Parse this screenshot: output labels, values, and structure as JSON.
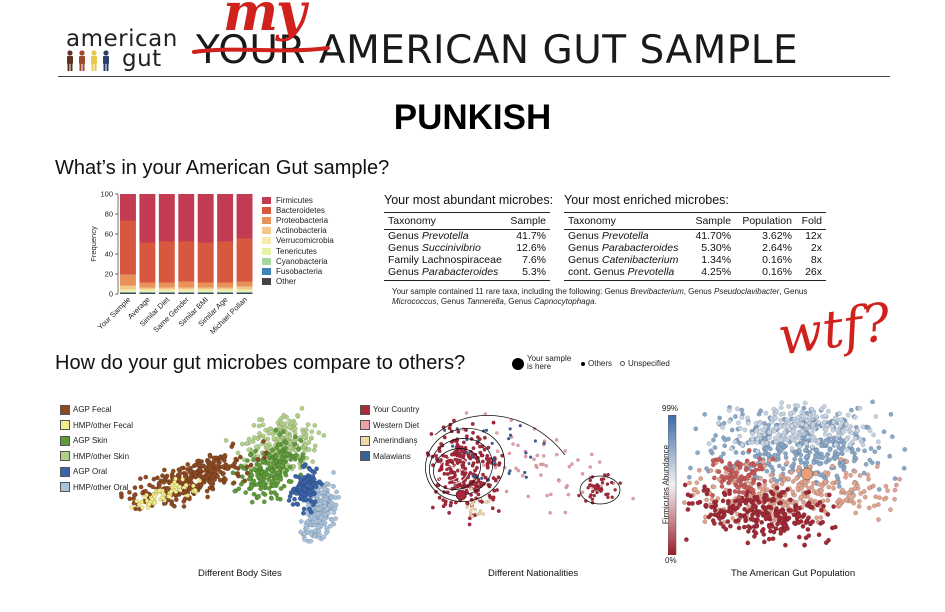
{
  "header": {
    "logo_top": "american",
    "logo_bottom": "gut",
    "title_struck": "YOUR",
    "title_rest": " AMERICAN GUT SAMPLE",
    "annotation": "my"
  },
  "page_title": "PUNKISH",
  "section1_title": "What’s in your American Gut sample?",
  "section2_title": "How do your gut microbes compare to others?",
  "handwritten_note": "wtf?",
  "colors": {
    "Firmicutes": "#c23b52",
    "Bacteroidetes": "#d8583f",
    "Proteobacteria": "#e8925a",
    "Actinobacteria": "#f2c98a",
    "Verrucomicrobia": "#f7ebaf",
    "Tenericutes": "#e6f1a8",
    "Cyanobacteria": "#a8d69f",
    "Fusobacteria": "#3f85b8",
    "Other": "#444444",
    "annotation_red": "#d0211d"
  },
  "chart_data": {
    "type": "bar",
    "stacked": true,
    "ylabel": "Frequency",
    "ylim": [
      0,
      100
    ],
    "yticks": [
      "0",
      "20",
      "40",
      "60",
      "80",
      "100"
    ],
    "categories": [
      "Your Sample",
      "Average",
      "Similar Diet",
      "Same Gender",
      "Similar BMI",
      "Similar Age",
      "Michael Pollan"
    ],
    "series": [
      {
        "name": "Other",
        "values": [
          1,
          1,
          1,
          1,
          1,
          1,
          1
        ]
      },
      {
        "name": "Fusobacteria",
        "values": [
          0.5,
          0.5,
          0.5,
          0.5,
          0.5,
          0.5,
          0.5
        ]
      },
      {
        "name": "Cyanobacteria",
        "values": [
          0.5,
          0.5,
          0.5,
          0.5,
          0.5,
          0.5,
          0.5
        ]
      },
      {
        "name": "Tenericutes",
        "values": [
          0.5,
          0.5,
          0.5,
          0.5,
          0.5,
          0.5,
          0.5
        ]
      },
      {
        "name": "Verrucomicrobia",
        "values": [
          2,
          2,
          2,
          2,
          2,
          2,
          2
        ]
      },
      {
        "name": "Actinobacteria",
        "values": [
          4,
          2,
          2,
          2,
          2,
          2,
          3
        ]
      },
      {
        "name": "Proteobacteria",
        "values": [
          11,
          5,
          5,
          6,
          5,
          5,
          5
        ]
      },
      {
        "name": "Bacteroidetes",
        "values": [
          54,
          40,
          41,
          40,
          40,
          41,
          43
        ]
      },
      {
        "name": "Firmicutes",
        "values": [
          26.5,
          48.5,
          47.5,
          47.5,
          48.5,
          47.5,
          44.5
        ]
      }
    ],
    "legend": [
      "Firmicutes",
      "Bacteroidetes",
      "Proteobacteria",
      "Actinobacteria",
      "Verrucomicrobia",
      "Tenericutes",
      "Cyanobacteria",
      "Fusobacteria",
      "Other"
    ]
  },
  "abundant": {
    "title": "Your most abundant microbes:",
    "headers": [
      "Taxonomy",
      "Sample"
    ],
    "rows": [
      {
        "rank": "Genus ",
        "name": "Prevotella",
        "sample": "41.7%"
      },
      {
        "rank": "Genus ",
        "name": "Succinivibrio",
        "sample": "12.6%"
      },
      {
        "rank": "Family Lachnospiraceae",
        "name": "",
        "sample": "7.6%"
      },
      {
        "rank": "Genus ",
        "name": "Parabacteroides",
        "sample": "5.3%"
      }
    ]
  },
  "enriched": {
    "title": "Your most enriched microbes:",
    "headers": [
      "Taxonomy",
      "Sample",
      "Population",
      "Fold"
    ],
    "rows": [
      {
        "rank": "Genus ",
        "name": "Prevotella",
        "sample": "41.70%",
        "population": "3.62%",
        "fold": "12x"
      },
      {
        "rank": "Genus ",
        "name": "Parabacteroides",
        "sample": "5.30%",
        "population": "2.64%",
        "fold": "2x"
      },
      {
        "rank": "Genus ",
        "name": "Catenibacterium",
        "sample": "1.34%",
        "population": "0.16%",
        "fold": "8x"
      },
      {
        "rank": "cont. Genus ",
        "name": "Prevotella",
        "sample": "4.25%",
        "population": "0.16%",
        "fold": "26x"
      }
    ]
  },
  "rare_note": {
    "lead": "Your sample contained 11 rare taxa, including the following: Genus ",
    "t1": "Brevibacterium",
    "s1": ", Genus ",
    "t2": "Pseudoclavibacter",
    "s2": ", Genus ",
    "t3": "Micrococcus",
    "s3": ", Genus ",
    "t4": "Tannerella",
    "s4": ", Genus ",
    "t5": "Capnocytophaga",
    "end": "."
  },
  "pcoa_legend": {
    "your_sample": "Your sample is here",
    "others": "Others",
    "unspecified": "Unspecified"
  },
  "body_sites": {
    "caption": "Different Body Sites",
    "legend": [
      {
        "label": "AGP Fecal",
        "color": "#8b4a22"
      },
      {
        "label": "HMP/other Fecal",
        "color": "#f3ee8a"
      },
      {
        "label": "AGP Skin",
        "color": "#5f9b3a"
      },
      {
        "label": "HMP/other Skin",
        "color": "#b3d08a"
      },
      {
        "label": "AGP Oral",
        "color": "#3a63a8"
      },
      {
        "label": "HMP/other Oral",
        "color": "#a9c3dc"
      }
    ]
  },
  "nationalities": {
    "caption": "Different Nationalities",
    "legend": [
      {
        "label": "Your Country",
        "color": "#a8283c"
      },
      {
        "label": "Western Diet",
        "color": "#e9a0a8"
      },
      {
        "label": "Amerindians",
        "color": "#f3d8a8"
      },
      {
        "label": "Malawians",
        "color": "#3b5f96"
      }
    ]
  },
  "population": {
    "caption": "The American Gut Population",
    "colorbar_label": "Firmicutes Abundance",
    "colorbar_max": "99%",
    "colorbar_min": "0%"
  }
}
